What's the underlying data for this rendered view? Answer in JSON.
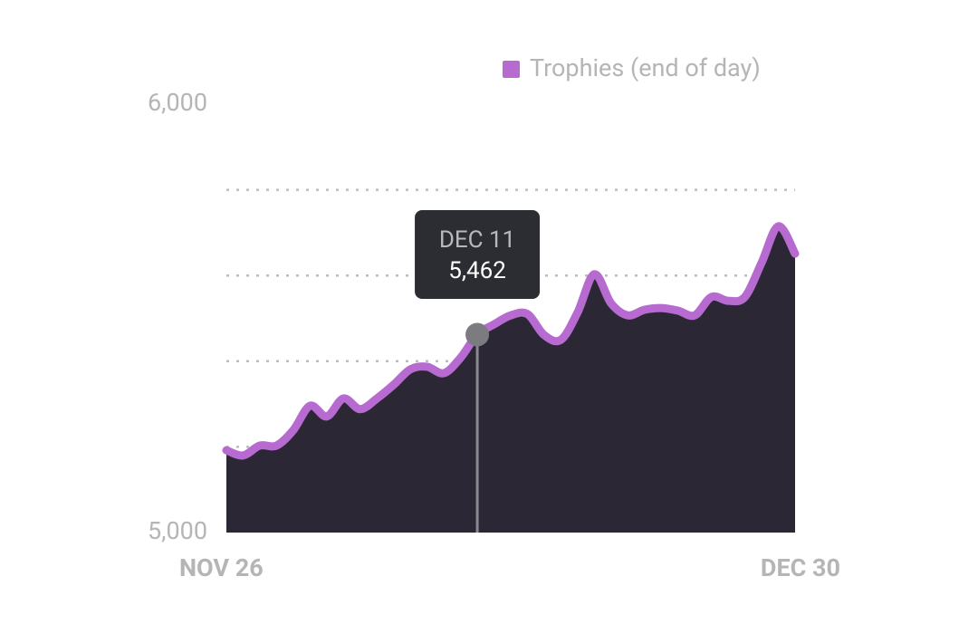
{
  "chart_data": {
    "type": "area",
    "categories": [
      "NOV 26",
      null,
      null,
      null,
      null,
      null,
      null,
      null,
      null,
      null,
      null,
      null,
      null,
      null,
      null,
      null,
      null,
      null,
      null,
      null,
      null,
      null,
      null,
      null,
      null,
      null,
      null,
      null,
      null,
      null,
      null,
      null,
      null,
      null,
      "DEC 30"
    ],
    "series": [
      {
        "name": "Trophies (end of day)",
        "color": "#b76bd0",
        "values": [
          5192,
          5180,
          5203,
          5203,
          5239,
          5296,
          5271,
          5313,
          5288,
          5313,
          5345,
          5381,
          5387,
          5372,
          5408,
          5462,
          5486,
          5507,
          5510,
          5461,
          5450,
          5514,
          5603,
          5535,
          5507,
          5520,
          5524,
          5518,
          5507,
          5550,
          5541,
          5550,
          5630,
          5715,
          5651
        ]
      }
    ],
    "area_color": "#2b2734",
    "ylim": [
      5000,
      6000
    ],
    "yticks": [
      {
        "value": 5000,
        "label": "5,000"
      },
      {
        "value": 6000,
        "label": "6,000"
      }
    ],
    "ygrid": [
      5200,
      5400,
      5600,
      5800
    ],
    "legend": "top-right",
    "tooltip": {
      "index": 15,
      "label": "DEC 11",
      "value_label": "5,462"
    }
  }
}
